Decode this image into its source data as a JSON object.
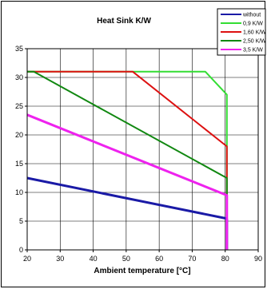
{
  "chart_data": {
    "type": "line",
    "title": "Heat Sink K/W",
    "xlabel": "Ambient temperature [°C]",
    "ylabel": "",
    "xlim": [
      20,
      90
    ],
    "ylim": [
      0,
      35
    ],
    "x_ticks": [
      "20",
      "30",
      "40",
      "50",
      "60",
      "70",
      "80",
      "90"
    ],
    "y_ticks": [
      "0",
      "5",
      "10",
      "15",
      "20",
      "25",
      "30",
      "35"
    ],
    "grid": true,
    "legend_position": "top-right",
    "series": [
      {
        "name": "without",
        "color": "#1a1aa6",
        "x": [
          20,
          80,
          80.5,
          80.5
        ],
        "y": [
          12.5,
          5.5,
          5.3,
          0
        ]
      },
      {
        "name": "0,9 K/W",
        "color": "#33dd33",
        "x": [
          20,
          74,
          80.5,
          80.5
        ],
        "y": [
          31,
          31,
          27,
          0
        ]
      },
      {
        "name": "1,60 K/W",
        "color": "#dd1111",
        "x": [
          20,
          52,
          80.5,
          80.5
        ],
        "y": [
          31,
          31,
          18,
          0
        ]
      },
      {
        "name": "2,50 K/W",
        "color": "#118811",
        "x": [
          20,
          22,
          80.5,
          80.5
        ],
        "y": [
          31,
          31,
          12.5,
          0
        ]
      },
      {
        "name": "3,5 K/W",
        "color": "#ee22ee",
        "x": [
          20,
          80.5,
          80.5
        ],
        "y": [
          23.5,
          9.5,
          0
        ]
      }
    ]
  }
}
